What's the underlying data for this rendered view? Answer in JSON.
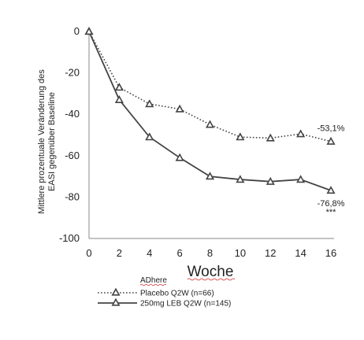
{
  "chart_data": {
    "type": "line",
    "title": "",
    "xlabel": "Woche",
    "ylabel_lines": [
      "Mittlere prozentuale Veränderung des",
      "EASI gegenüber Baseline"
    ],
    "x": [
      0,
      2,
      4,
      6,
      8,
      10,
      12,
      14,
      16
    ],
    "xlim": [
      0,
      16
    ],
    "ylim": [
      -100,
      0
    ],
    "yticks": [
      0,
      -20,
      -40,
      -60,
      -80,
      -100
    ],
    "grid": false,
    "series": [
      {
        "name": "Placebo Q2W (n=66)",
        "values": [
          0,
          -27,
          -35,
          -37.5,
          -45,
          -51,
          -51.5,
          -49.5,
          -53.1
        ],
        "style": "dotted",
        "color": "#444444",
        "end_label": "-53,1%"
      },
      {
        "name": "250mg LEB Q2W (n=145)",
        "values": [
          0,
          -33,
          -51,
          -61,
          -70,
          -71.5,
          -72.5,
          -71.5,
          -76.8
        ],
        "style": "solid",
        "color": "#444444",
        "end_label": "-76,8%",
        "significance": "***"
      }
    ],
    "legend_title": "ADhere",
    "legend_position": "bottom-left"
  }
}
